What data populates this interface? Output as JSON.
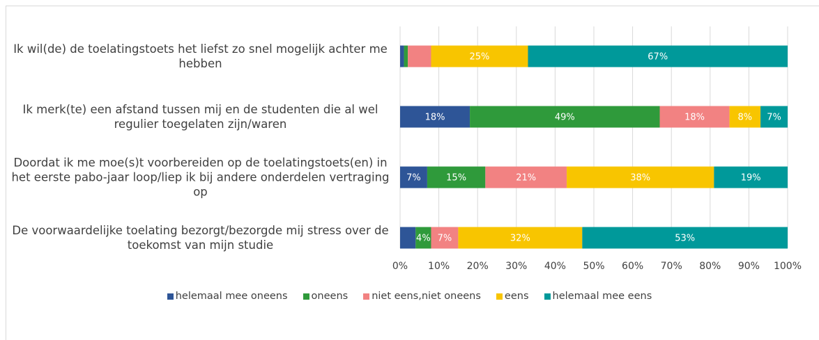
{
  "chart_data": {
    "type": "stacked-bar-horizontal",
    "categories": [
      "Ik wil(de) de toelatingstoets het liefst zo snel mogelijk achter me hebben",
      "Ik merk(te) een afstand tussen mij en de studenten die al wel regulier toegelaten zijn/waren",
      "Doordat ik me moe(s)t voorbereiden op de toelatingstoets(en) in het eerste pabo-jaar loop/liep ik bij andere onderdelen vertraging op",
      "De voorwaardelijke toelating bezorgt/bezorgde mij stress over de toekomst van mijn studie"
    ],
    "series": [
      {
        "name": "helemaal mee oneens",
        "color": "#2e5597",
        "values": [
          1,
          18,
          7,
          4
        ],
        "value_labels": [
          null,
          "18%",
          "7%",
          null
        ]
      },
      {
        "name": "oneens",
        "color": "#2f9a3b",
        "values": [
          1,
          49,
          15,
          4
        ],
        "value_labels": [
          null,
          "49%",
          "15%",
          "4%"
        ]
      },
      {
        "name": "niet eens,niet oneens",
        "color": "#f28282",
        "values": [
          6,
          18,
          21,
          7
        ],
        "value_labels": [
          null,
          "18%",
          "21%",
          "7%"
        ]
      },
      {
        "name": "eens",
        "color": "#f8c500",
        "values": [
          25,
          8,
          38,
          32
        ],
        "value_labels": [
          "25%",
          "8%",
          "38%",
          "32%"
        ]
      },
      {
        "name": "helemaal mee eens",
        "color": "#00999a",
        "values": [
          67,
          7,
          19,
          53
        ],
        "value_labels": [
          "67%",
          "7%",
          "19%",
          "53%"
        ]
      }
    ],
    "xlim": [
      0,
      100
    ],
    "xticks": [
      {
        "value": 0,
        "label": "0%"
      },
      {
        "value": 10,
        "label": "10%"
      },
      {
        "value": 20,
        "label": "20%"
      },
      {
        "value": 30,
        "label": "30%"
      },
      {
        "value": 40,
        "label": "40%"
      },
      {
        "value": 50,
        "label": "50%"
      },
      {
        "value": 60,
        "label": "60%"
      },
      {
        "value": 70,
        "label": "70%"
      },
      {
        "value": 80,
        "label": "80%"
      },
      {
        "value": 90,
        "label": "90%"
      },
      {
        "value": 100,
        "label": "100%"
      }
    ],
    "grid": true,
    "legend": "bottom"
  }
}
